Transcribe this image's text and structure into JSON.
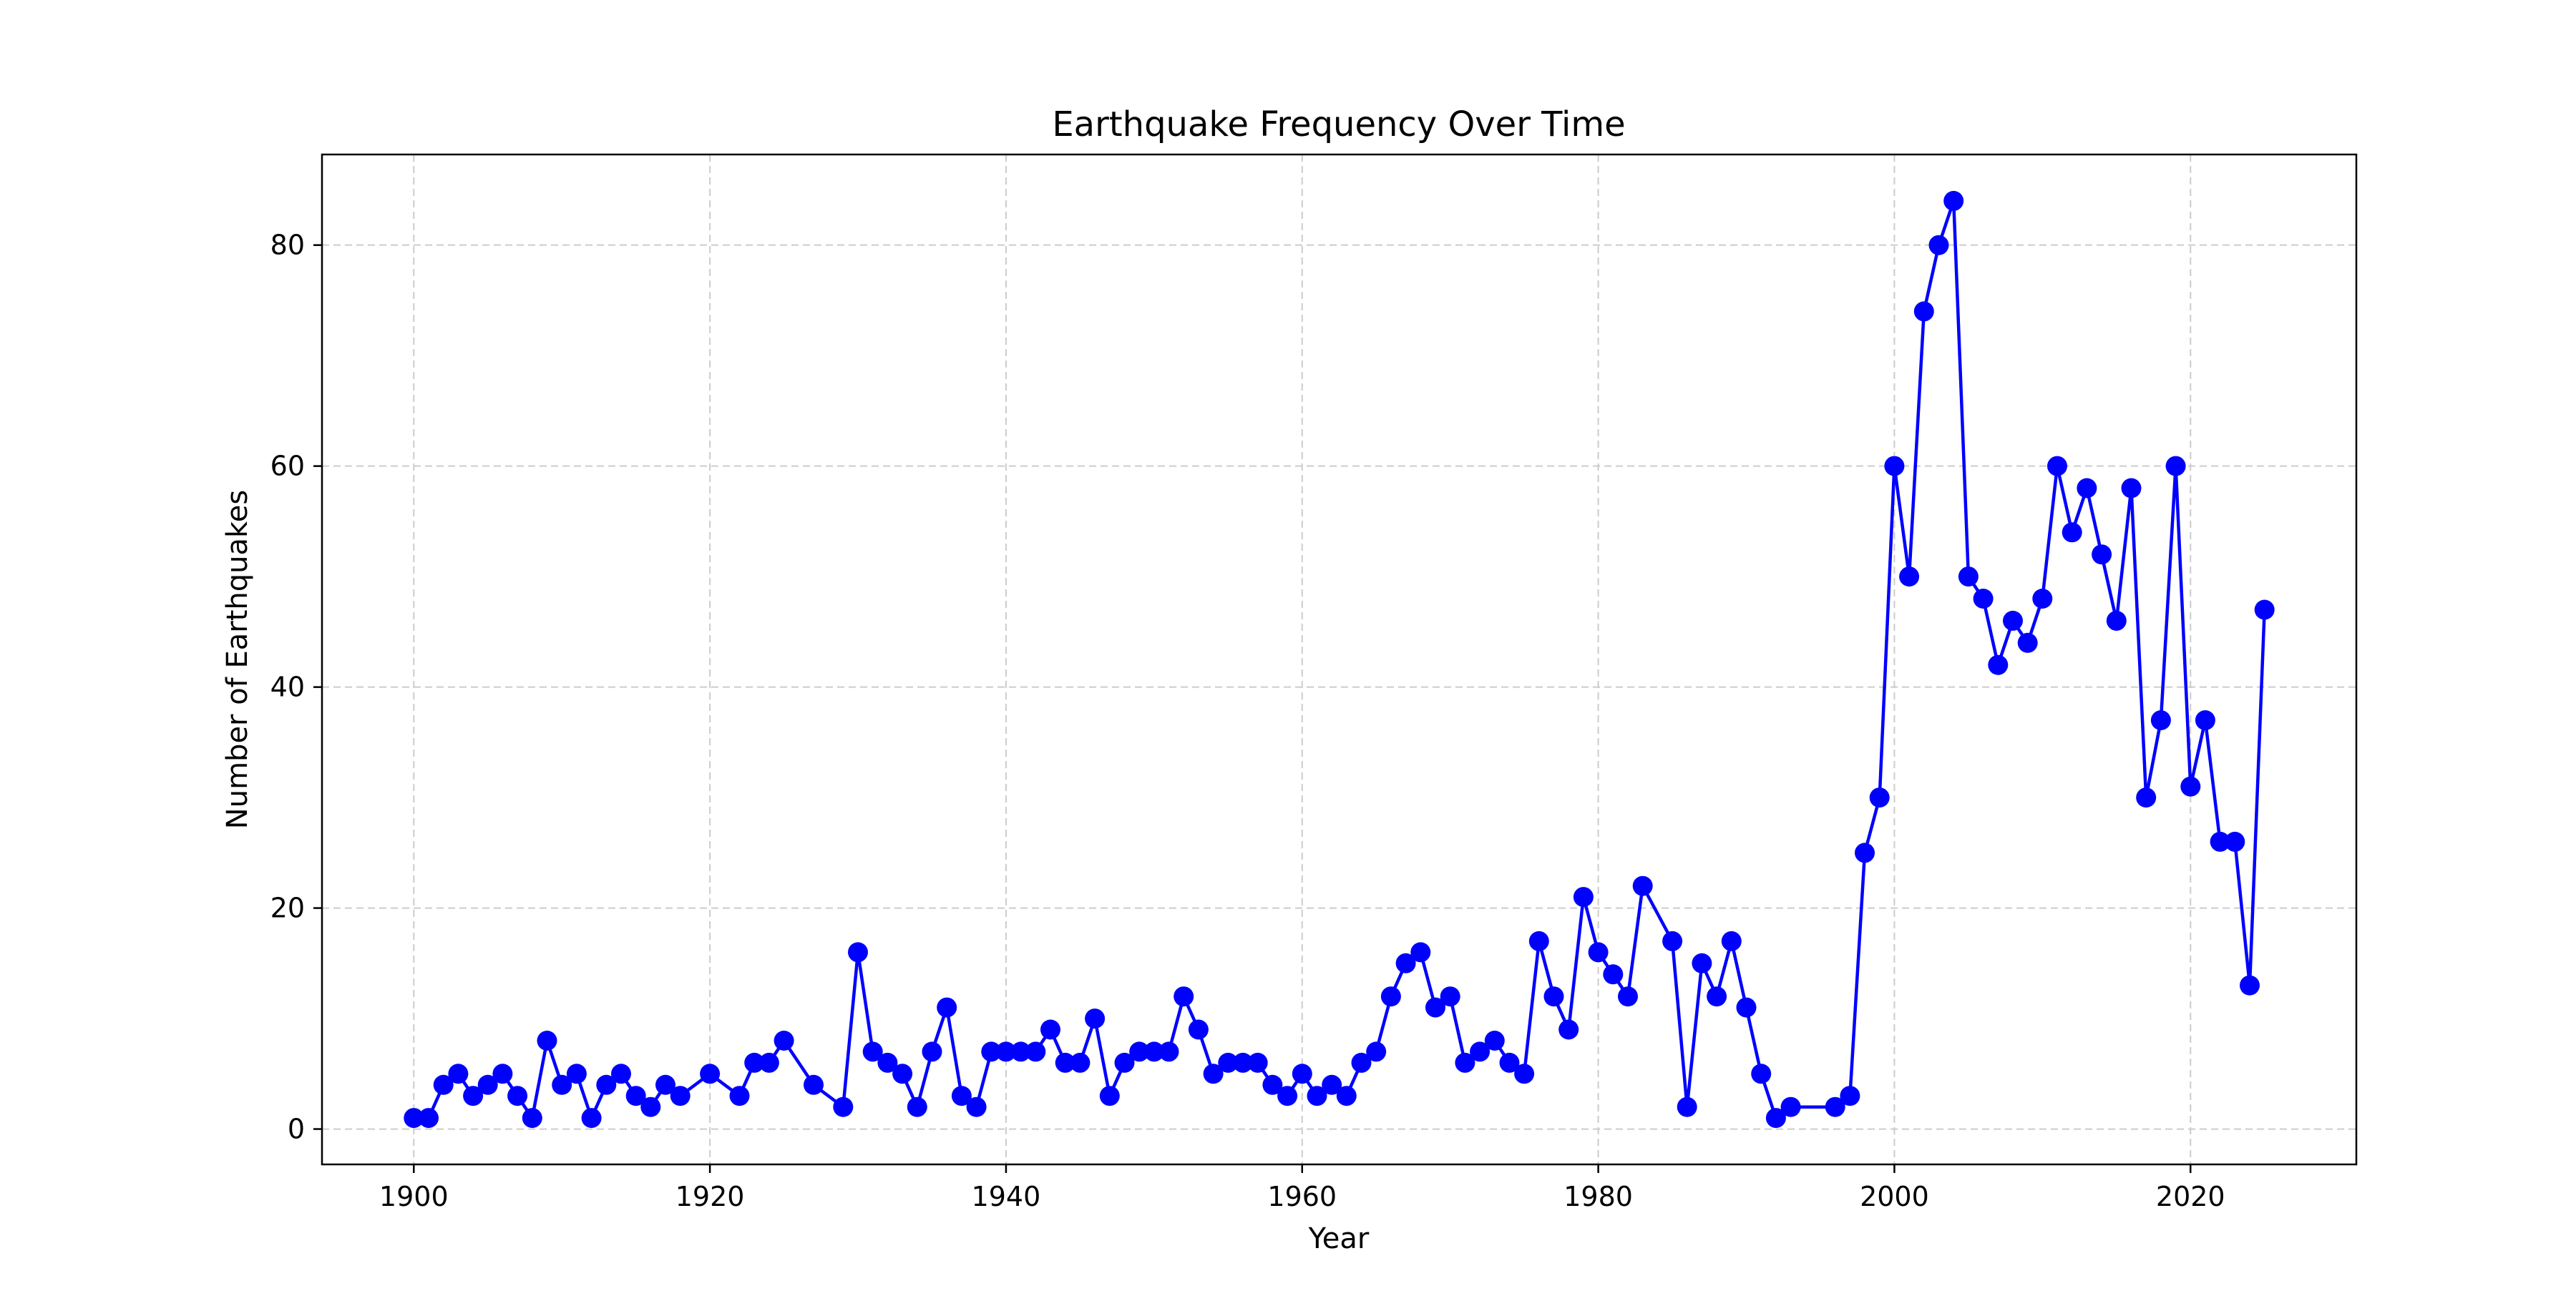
{
  "chart_data": {
    "type": "line",
    "title": "Earthquake Frequency Over Time",
    "xlabel": "Year",
    "ylabel": "Number of Earthquakes",
    "xlim": [
      1893.8,
      2031.2
    ],
    "ylim": [
      -3.2,
      88.2
    ],
    "xticks": [
      1900,
      1920,
      1940,
      1960,
      1980,
      2000,
      2020
    ],
    "yticks": [
      0,
      20,
      40,
      60,
      80
    ],
    "grid": true,
    "grid_style": "dashed",
    "legend": "none",
    "colors": {
      "line": "#0000ff",
      "marker": "#0000ff",
      "grid": "#cccccc",
      "axes": "#000000"
    },
    "series": [
      {
        "x": [
          1900,
          1901,
          1902,
          1903,
          1904,
          1905,
          1906,
          1907,
          1908,
          1909,
          1910,
          1911,
          1912,
          1913,
          1914,
          1915,
          1916,
          1917,
          1918,
          1920,
          1922,
          1923,
          1924,
          1925,
          1927,
          1929,
          1930,
          1931,
          1932,
          1933,
          1934,
          1935,
          1936,
          1937,
          1938,
          1939,
          1940,
          1941,
          1942,
          1943,
          1944,
          1945,
          1946,
          1947,
          1948,
          1949,
          1950,
          1951,
          1952,
          1953,
          1954,
          1955,
          1956,
          1957,
          1958,
          1959,
          1960,
          1961,
          1962,
          1963,
          1964,
          1965,
          1966,
          1967,
          1968,
          1969,
          1970,
          1971,
          1972,
          1973,
          1974,
          1975,
          1976,
          1977,
          1978,
          1979,
          1980,
          1981,
          1982,
          1983,
          1985,
          1986,
          1987,
          1988,
          1989,
          1990,
          1991,
          1992,
          1993,
          1996,
          1997,
          1998,
          1999,
          2000,
          2001,
          2002,
          2003,
          2004,
          2005,
          2006,
          2007,
          2008,
          2009,
          2010,
          2011,
          2012,
          2013,
          2014,
          2015,
          2016,
          2017,
          2018,
          2019,
          2020,
          2021,
          2022,
          2023,
          2024,
          2025
        ],
        "values": [
          1,
          1,
          4,
          5,
          3,
          4,
          5,
          3,
          1,
          8,
          4,
          5,
          1,
          4,
          5,
          3,
          2,
          4,
          3,
          5,
          3,
          6,
          6,
          8,
          4,
          2,
          16,
          7,
          6,
          5,
          2,
          7,
          11,
          3,
          2,
          7,
          7,
          7,
          7,
          9,
          6,
          6,
          10,
          3,
          6,
          7,
          7,
          7,
          12,
          9,
          5,
          6,
          6,
          6,
          4,
          3,
          5,
          3,
          4,
          3,
          6,
          7,
          12,
          15,
          16,
          11,
          12,
          6,
          7,
          8,
          6,
          5,
          17,
          12,
          9,
          21,
          16,
          14,
          12,
          22,
          17,
          2,
          15,
          12,
          17,
          11,
          5,
          1,
          2,
          2,
          3,
          25,
          30,
          60,
          50,
          74,
          80,
          84,
          50,
          48,
          42,
          46,
          44,
          48,
          60,
          54,
          58,
          52,
          46,
          58,
          30,
          37,
          60,
          31,
          37,
          26,
          26,
          13,
          47
        ]
      }
    ]
  }
}
